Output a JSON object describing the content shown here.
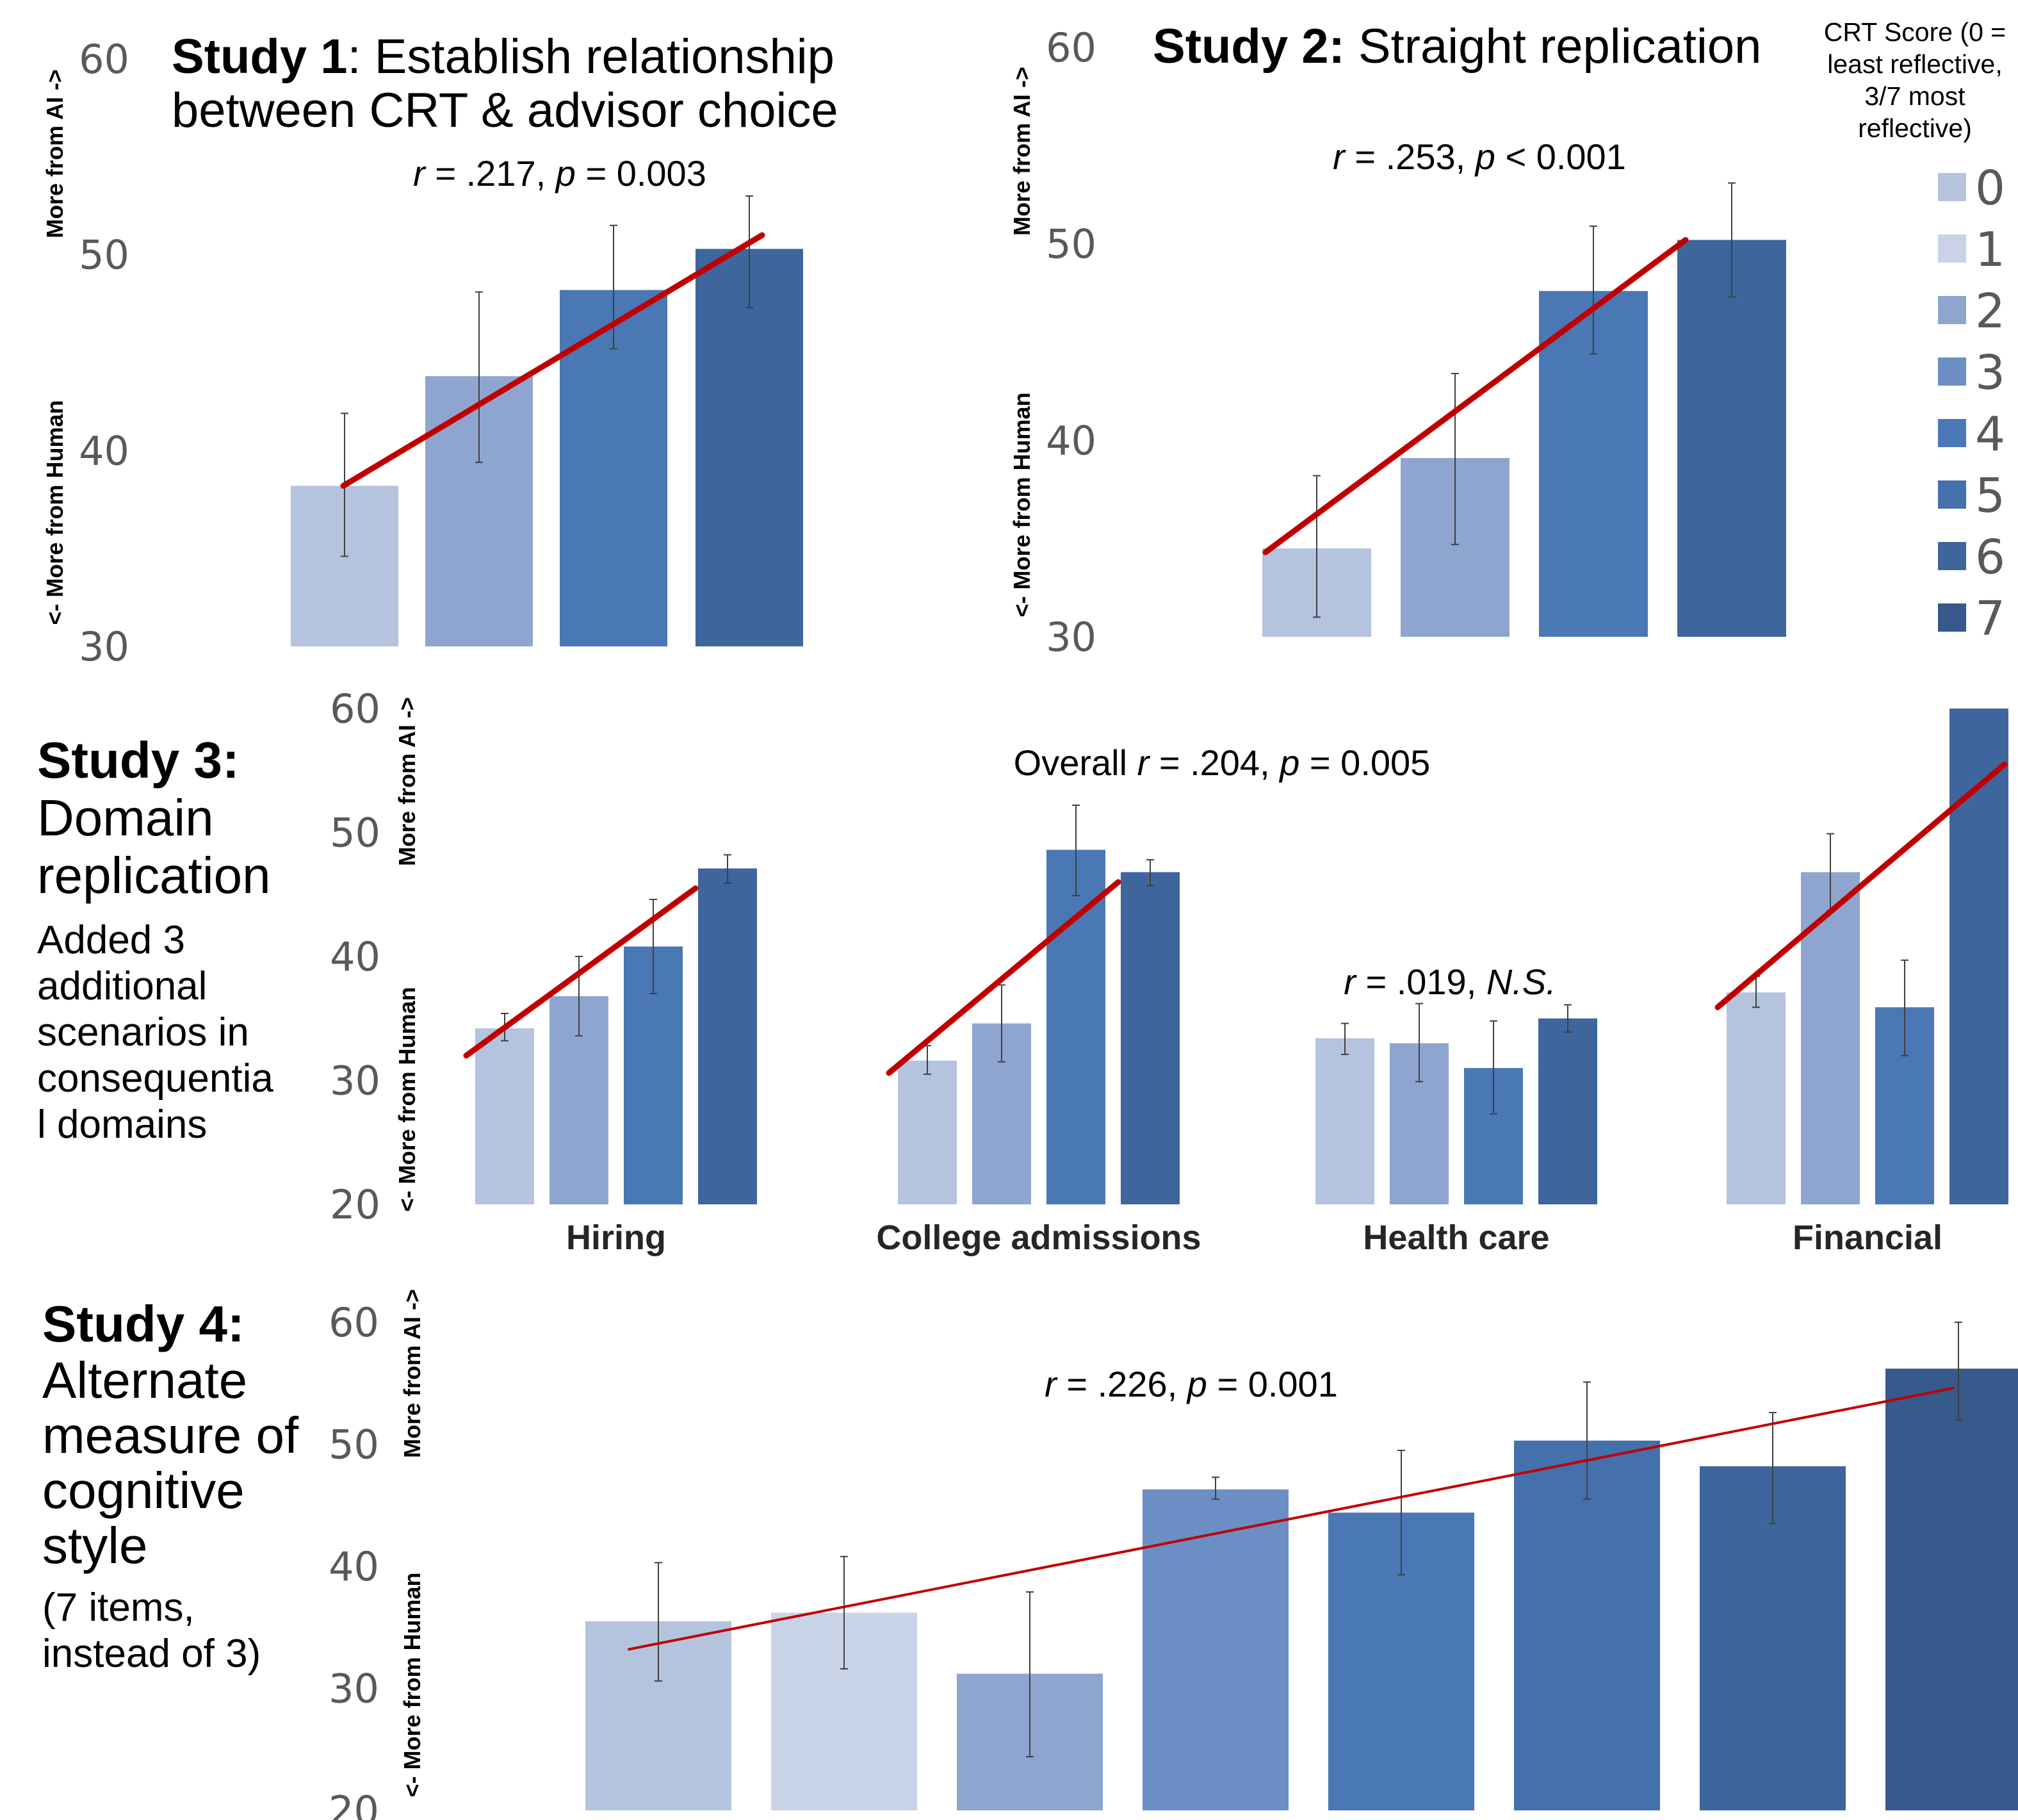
{
  "legend": {
    "title_lines": [
      "CRT Score (0 =",
      "least reflective,",
      "3/7 most",
      "reflective)"
    ],
    "items": [
      {
        "label": "0",
        "color": "#b4c3de"
      },
      {
        "label": "1",
        "color": "#c9d3e7"
      },
      {
        "label": "2",
        "color": "#8ea6cf"
      },
      {
        "label": "3",
        "color": "#6b8fc4"
      },
      {
        "label": "4",
        "color": "#4a78b4"
      },
      {
        "label": "5",
        "color": "#4470ab"
      },
      {
        "label": "6",
        "color": "#3e669d"
      },
      {
        "label": "7",
        "color": "#365a8b"
      }
    ]
  },
  "chart_data": [
    {
      "type": "bar",
      "id": "study1",
      "title_bold": "Study 1",
      "title_rest": ": Establish relationship",
      "title_line2": "between CRT & advisor choice",
      "stat": {
        "r": "r",
        "r_val": " = .217, ",
        "p": "p",
        "p_val": " = 0.003"
      },
      "ylabel_top": "More from AI ->",
      "ylabel_bottom": "<- More from Human",
      "ylim": [
        30,
        60
      ],
      "yticks": [
        "30",
        "40",
        "50",
        "60"
      ],
      "bars": [
        {
          "crt": "0",
          "value": 38.2,
          "err_low": 34.6,
          "err_high": 41.9,
          "color": "#b4c3de"
        },
        {
          "crt": "1",
          "value": 43.8,
          "err_low": 39.4,
          "err_high": 48.1,
          "color": "#8ea6cf"
        },
        {
          "crt": "2",
          "value": 48.2,
          "err_low": 45.2,
          "err_high": 51.5,
          "color": "#4a78b4"
        },
        {
          "crt": "3",
          "value": 50.3,
          "err_low": 47.3,
          "err_high": 53.0,
          "color": "#3e669d"
        }
      ],
      "trend": {
        "from": 38.2,
        "to": 51.0,
        "color": "#c00000"
      }
    },
    {
      "type": "bar",
      "id": "study2",
      "title_bold": "Study 2:",
      "title_rest": " Straight replication",
      "stat": {
        "r": "r",
        "r_val": " = .253, ",
        "p": "p",
        "p_val": " < 0.001"
      },
      "ylabel_top": "More from AI ->",
      "ylabel_bottom": "<- More from Human",
      "ylim": [
        30,
        60
      ],
      "yticks": [
        "30",
        "40",
        "50",
        "60"
      ],
      "bars": [
        {
          "crt": "0",
          "value": 34.5,
          "err_low": 31.0,
          "err_high": 38.2,
          "color": "#b4c3de"
        },
        {
          "crt": "1",
          "value": 39.1,
          "err_low": 34.7,
          "err_high": 43.4,
          "color": "#8ea6cf"
        },
        {
          "crt": "2",
          "value": 47.6,
          "err_low": 44.4,
          "err_high": 50.9,
          "color": "#4a78b4"
        },
        {
          "crt": "3",
          "value": 50.2,
          "err_low": 47.3,
          "err_high": 53.1,
          "color": "#3e669d"
        }
      ],
      "trend": {
        "from": 34.3,
        "to": 50.2,
        "color": "#c00000"
      }
    },
    {
      "type": "bar",
      "id": "study3",
      "stat": {
        "prefix": "Overall ",
        "r": "r",
        "r_val": " = .204, ",
        "p": "p",
        "p_val": " = 0.005"
      },
      "ylabel_top": "More from AI ->",
      "ylabel_bottom": "<- More from Human",
      "ylim": [
        20,
        60
      ],
      "yticks": [
        "20",
        "30",
        "40",
        "50",
        "60"
      ],
      "groups": [
        {
          "category": "Hiring",
          "bars": [
            {
              "crt": "0",
              "value": 34.2,
              "err_low": 33.2,
              "err_high": 35.4
            },
            {
              "crt": "1",
              "value": 36.8,
              "err_low": 33.6,
              "err_high": 40.0
            },
            {
              "crt": "2",
              "value": 40.8,
              "err_low": 37.0,
              "err_high": 44.6
            },
            {
              "crt": "3",
              "value": 47.1,
              "err_low": 45.9,
              "err_high": 48.2
            }
          ],
          "trend": {
            "from": 32.0,
            "to": 45.5
          }
        },
        {
          "category": "College admissions",
          "bars": [
            {
              "crt": "0",
              "value": 31.6,
              "err_low": 30.5,
              "err_high": 32.8
            },
            {
              "crt": "1",
              "value": 34.6,
              "err_low": 31.5,
              "err_high": 37.7
            },
            {
              "crt": "2",
              "value": 48.6,
              "err_low": 44.9,
              "err_high": 52.2
            },
            {
              "crt": "3",
              "value": 46.8,
              "err_low": 45.7,
              "err_high": 47.8
            }
          ],
          "trend": {
            "from": 30.6,
            "to": 46.0
          }
        },
        {
          "category": "Health care",
          "stat": {
            "r": "r",
            "r_val": " = .019, ",
            "ns": "N.S."
          },
          "bars": [
            {
              "crt": "0",
              "value": 33.4,
              "err_low": 32.1,
              "err_high": 34.6
            },
            {
              "crt": "1",
              "value": 33.0,
              "err_low": 29.9,
              "err_high": 36.2
            },
            {
              "crt": "2",
              "value": 31.0,
              "err_low": 27.3,
              "err_high": 34.8
            },
            {
              "crt": "3",
              "value": 35.0,
              "err_low": 33.9,
              "err_high": 36.1
            }
          ]
        },
        {
          "category": "Financial",
          "bars": [
            {
              "crt": "0",
              "value": 37.1,
              "err_low": 35.9,
              "err_high": 38.4
            },
            {
              "crt": "1",
              "value": 46.8,
              "err_low": 43.7,
              "err_high": 49.9
            },
            {
              "crt": "2",
              "value": 35.9,
              "err_low": 32.0,
              "err_high": 39.7
            },
            {
              "crt": "3",
              "value": 60.0,
              "err_low": 60.0,
              "err_high": 60.0
            }
          ],
          "trend": {
            "from": 35.9,
            "to": 55.5
          }
        }
      ],
      "bar_colors": [
        "#b4c3de",
        "#8ea6cf",
        "#4a78b4",
        "#3e669d"
      ],
      "trend_color": "#c00000"
    },
    {
      "type": "bar",
      "id": "study4",
      "stat": {
        "r": "r",
        "r_val": " = .226, ",
        "p": "p",
        "p_val": " = 0.001"
      },
      "ylabel_top": "More from AI ->",
      "ylabel_bottom": "<- More from Human",
      "ylim": [
        20,
        60
      ],
      "yticks": [
        "20",
        "30",
        "40",
        "50",
        "60"
      ],
      "bars": [
        {
          "crt": "0",
          "value": 35.5,
          "err_low": 30.6,
          "err_high": 40.3,
          "color": "#b4c3de"
        },
        {
          "crt": "1",
          "value": 36.2,
          "err_low": 31.6,
          "err_high": 40.8,
          "color": "#c9d3e7"
        },
        {
          "crt": "2",
          "value": 31.2,
          "err_low": 24.4,
          "err_high": 37.9,
          "color": "#8ea6cf"
        },
        {
          "crt": "3",
          "value": 46.3,
          "err_low": 45.5,
          "err_high": 47.3,
          "color": "#6b8fc4"
        },
        {
          "crt": "4",
          "value": 44.4,
          "err_low": 39.3,
          "err_high": 49.5,
          "color": "#4a78b4"
        },
        {
          "crt": "5",
          "value": 50.3,
          "err_low": 45.5,
          "err_high": 55.1,
          "color": "#4470ab"
        },
        {
          "crt": "6",
          "value": 48.2,
          "err_low": 43.5,
          "err_high": 52.6,
          "color": "#3e669d"
        },
        {
          "crt": "7",
          "value": 56.2,
          "err_low": 52.0,
          "err_high": 60.0,
          "color": "#365a8b"
        }
      ],
      "trend": {
        "from": 33.2,
        "to": 54.6,
        "color": "#c00000"
      }
    }
  ],
  "side_labels": {
    "study3": {
      "bold": "Study 3:",
      "big_lines": [
        "Domain",
        "replication"
      ],
      "small_lines": [
        "Added 3",
        "additional",
        "scenarios in",
        "consequentia",
        "l domains"
      ]
    },
    "study4": {
      "bold": "Study 4:",
      "big_lines": [
        "Alternate",
        "measure of",
        "cognitive",
        "style"
      ],
      "small_lines": [
        "(7 items,",
        "instead of 3)"
      ]
    }
  }
}
